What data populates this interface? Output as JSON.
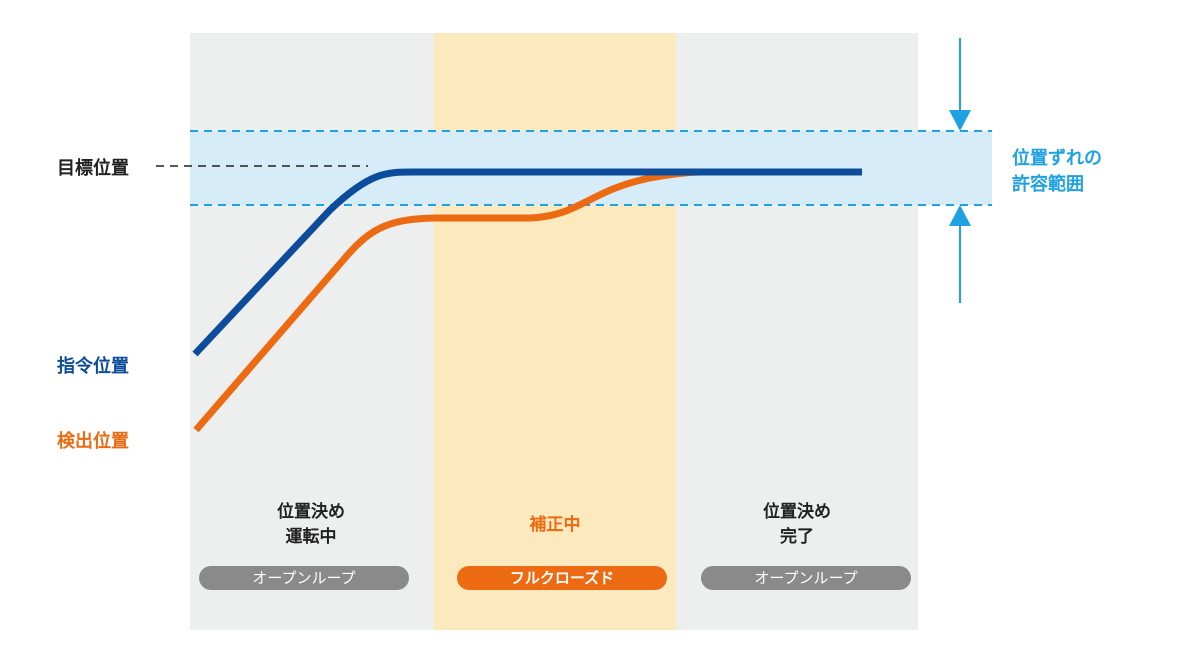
{
  "colors": {
    "open_loop_bg": "#edeeee",
    "closed_loop_bg": "#fde9be",
    "tolerance_band": "#d6ecf8",
    "tolerance_accent": "#1ea2e2",
    "command_line": "#0d4c9a",
    "detected_line": "#ec6b12",
    "pill_gray": "#8a8a8a",
    "pill_orange": "#ec6b12"
  },
  "labels": {
    "target_position": "目標位置",
    "command_position": "指令位置",
    "detected_position": "検出位置",
    "tolerance": [
      "位置ずれの",
      "許容範囲"
    ]
  },
  "phases": [
    {
      "title": [
        "位置決め",
        "運転中"
      ],
      "mode": "オープンループ",
      "style": "open"
    },
    {
      "title": [
        "補正中"
      ],
      "mode": "フルクローズド",
      "style": "closed"
    },
    {
      "title": [
        "位置決め",
        "完了"
      ],
      "mode": "オープンループ",
      "style": "open"
    }
  ]
}
